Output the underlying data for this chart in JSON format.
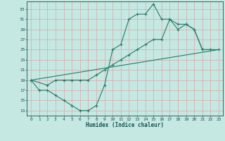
{
  "xlabel": "Humidex (Indice chaleur)",
  "background_color": "#c5e8e2",
  "grid_color": "#d8b0b0",
  "line_color": "#2a7a6a",
  "xlim": [
    -0.5,
    23.5
  ],
  "ylim": [
    12.0,
    34.5
  ],
  "xticks": [
    0,
    1,
    2,
    3,
    4,
    5,
    6,
    7,
    8,
    9,
    10,
    11,
    12,
    13,
    14,
    15,
    16,
    17,
    18,
    19,
    20,
    21,
    22,
    23
  ],
  "yticks": [
    13,
    15,
    17,
    19,
    21,
    23,
    25,
    27,
    29,
    31,
    33
  ],
  "line1_x": [
    0,
    1,
    2,
    3,
    4,
    5,
    6,
    7,
    8,
    9,
    10,
    11,
    12,
    13,
    14,
    15,
    16,
    17,
    18,
    19,
    20,
    21,
    22
  ],
  "line1_y": [
    19,
    17,
    17,
    16,
    15,
    14,
    13,
    13,
    14,
    18,
    25,
    26,
    31,
    32,
    32,
    34,
    31,
    31,
    30,
    30,
    29,
    25,
    25
  ],
  "line2_x": [
    0,
    2,
    3,
    4,
    5,
    6,
    7,
    8,
    9,
    10,
    11,
    12,
    13,
    14,
    15,
    16,
    17,
    18,
    19,
    20,
    21,
    22,
    23
  ],
  "line2_y": [
    19,
    18,
    19,
    19,
    19,
    19,
    19,
    20,
    21,
    22,
    23,
    24,
    25,
    26,
    27,
    27,
    31,
    29,
    30,
    29,
    25,
    25,
    25
  ],
  "line3_x": [
    0,
    23
  ],
  "line3_y": [
    19,
    25
  ]
}
